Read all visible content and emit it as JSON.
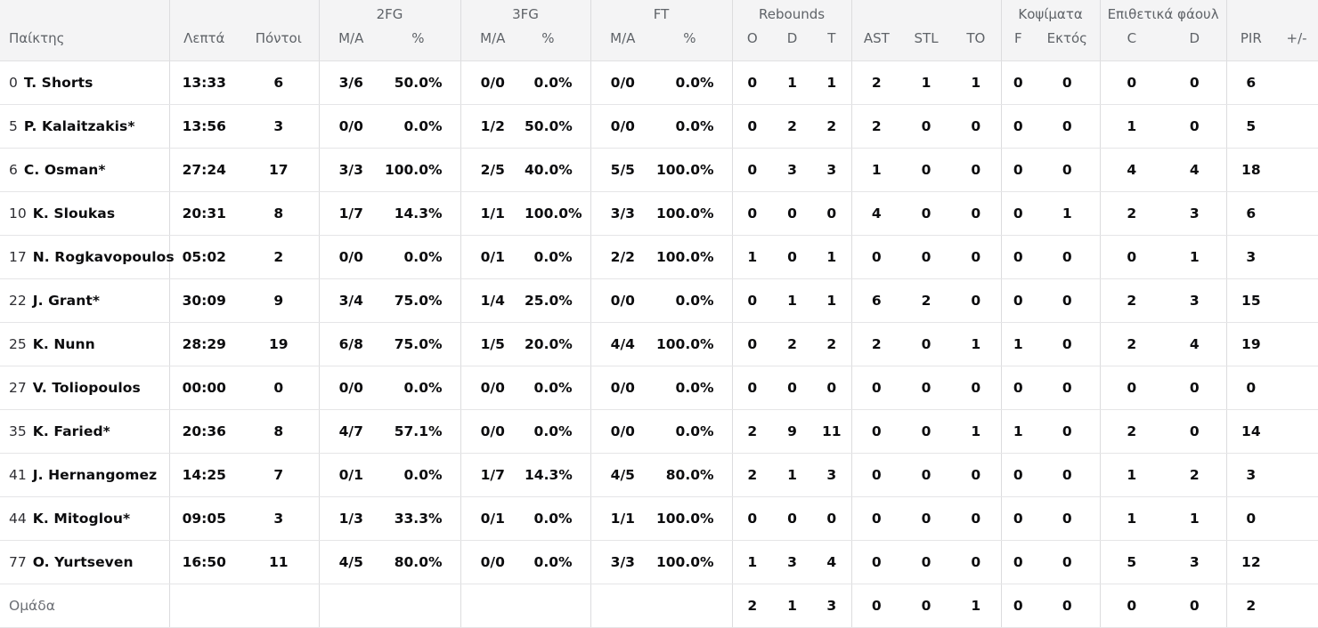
{
  "colors": {
    "header_bg": "#f4f4f5",
    "header_text": "#5f6368",
    "body_text": "#0c0c0e",
    "muted_text": "#6b6e74",
    "vertical_border": "#dcdcde",
    "row_border": "#e5e5e7"
  },
  "table": {
    "headers": {
      "player": "Παίκτης",
      "minutes": "Λεπτά",
      "points": "Πόντοι",
      "group_2fg": "2FG",
      "group_3fg": "3FG",
      "group_ft": "FT",
      "group_rebounds": "Rebounds",
      "group_blocks": "Κοψίματα",
      "group_off_fouls": "Επιθετικά φάουλ",
      "ma": "M/A",
      "pct": "%",
      "reb_o": "O",
      "reb_d": "D",
      "reb_t": "T",
      "ast": "AST",
      "stl": "STL",
      "to": "TO",
      "blk_f": "F",
      "blk_against": "Εκτός",
      "foul_c": "C",
      "foul_d": "D",
      "pir": "PIR",
      "plus_minus": "+/-"
    },
    "rows": [
      {
        "num": "0",
        "name": "T. Shorts",
        "min": "13:33",
        "pts": "6",
        "fg2ma": "3/6",
        "fg2pct": "50.0%",
        "fg3ma": "0/0",
        "fg3pct": "0.0%",
        "ftma": "0/0",
        "ftpct": "0.0%",
        "o": "0",
        "d": "1",
        "t": "1",
        "ast": "2",
        "stl": "1",
        "to": "1",
        "f": "0",
        "ektos": "0",
        "c": "0",
        "d2": "0",
        "pir": "6",
        "pm": ""
      },
      {
        "num": "5",
        "name": "P. Kalaitzakis*",
        "min": "13:56",
        "pts": "3",
        "fg2ma": "0/0",
        "fg2pct": "0.0%",
        "fg3ma": "1/2",
        "fg3pct": "50.0%",
        "ftma": "0/0",
        "ftpct": "0.0%",
        "o": "0",
        "d": "2",
        "t": "2",
        "ast": "2",
        "stl": "0",
        "to": "0",
        "f": "0",
        "ektos": "0",
        "c": "1",
        "d2": "0",
        "pir": "5",
        "pm": ""
      },
      {
        "num": "6",
        "name": "C. Osman*",
        "min": "27:24",
        "pts": "17",
        "fg2ma": "3/3",
        "fg2pct": "100.0%",
        "fg3ma": "2/5",
        "fg3pct": "40.0%",
        "ftma": "5/5",
        "ftpct": "100.0%",
        "o": "0",
        "d": "3",
        "t": "3",
        "ast": "1",
        "stl": "0",
        "to": "0",
        "f": "0",
        "ektos": "0",
        "c": "4",
        "d2": "4",
        "pir": "18",
        "pm": ""
      },
      {
        "num": "10",
        "name": "K. Sloukas",
        "min": "20:31",
        "pts": "8",
        "fg2ma": "1/7",
        "fg2pct": "14.3%",
        "fg3ma": "1/1",
        "fg3pct": "100.0%",
        "ftma": "3/3",
        "ftpct": "100.0%",
        "o": "0",
        "d": "0",
        "t": "0",
        "ast": "4",
        "stl": "0",
        "to": "0",
        "f": "0",
        "ektos": "1",
        "c": "2",
        "d2": "3",
        "pir": "6",
        "pm": ""
      },
      {
        "num": "17",
        "name": "N. Rogkavopoulos",
        "min": "05:02",
        "pts": "2",
        "fg2ma": "0/0",
        "fg2pct": "0.0%",
        "fg3ma": "0/1",
        "fg3pct": "0.0%",
        "ftma": "2/2",
        "ftpct": "100.0%",
        "o": "1",
        "d": "0",
        "t": "1",
        "ast": "0",
        "stl": "0",
        "to": "0",
        "f": "0",
        "ektos": "0",
        "c": "0",
        "d2": "1",
        "pir": "3",
        "pm": ""
      },
      {
        "num": "22",
        "name": "J. Grant*",
        "min": "30:09",
        "pts": "9",
        "fg2ma": "3/4",
        "fg2pct": "75.0%",
        "fg3ma": "1/4",
        "fg3pct": "25.0%",
        "ftma": "0/0",
        "ftpct": "0.0%",
        "o": "0",
        "d": "1",
        "t": "1",
        "ast": "6",
        "stl": "2",
        "to": "0",
        "f": "0",
        "ektos": "0",
        "c": "2",
        "d2": "3",
        "pir": "15",
        "pm": ""
      },
      {
        "num": "25",
        "name": "K. Nunn",
        "min": "28:29",
        "pts": "19",
        "fg2ma": "6/8",
        "fg2pct": "75.0%",
        "fg3ma": "1/5",
        "fg3pct": "20.0%",
        "ftma": "4/4",
        "ftpct": "100.0%",
        "o": "0",
        "d": "2",
        "t": "2",
        "ast": "2",
        "stl": "0",
        "to": "1",
        "f": "1",
        "ektos": "0",
        "c": "2",
        "d2": "4",
        "pir": "19",
        "pm": ""
      },
      {
        "num": "27",
        "name": "V. Toliopoulos",
        "min": "00:00",
        "pts": "0",
        "fg2ma": "0/0",
        "fg2pct": "0.0%",
        "fg3ma": "0/0",
        "fg3pct": "0.0%",
        "ftma": "0/0",
        "ftpct": "0.0%",
        "o": "0",
        "d": "0",
        "t": "0",
        "ast": "0",
        "stl": "0",
        "to": "0",
        "f": "0",
        "ektos": "0",
        "c": "0",
        "d2": "0",
        "pir": "0",
        "pm": ""
      },
      {
        "num": "35",
        "name": "K. Faried*",
        "min": "20:36",
        "pts": "8",
        "fg2ma": "4/7",
        "fg2pct": "57.1%",
        "fg3ma": "0/0",
        "fg3pct": "0.0%",
        "ftma": "0/0",
        "ftpct": "0.0%",
        "o": "2",
        "d": "9",
        "t": "11",
        "ast": "0",
        "stl": "0",
        "to": "1",
        "f": "1",
        "ektos": "0",
        "c": "2",
        "d2": "0",
        "pir": "14",
        "pm": ""
      },
      {
        "num": "41",
        "name": "J. Hernangomez",
        "min": "14:25",
        "pts": "7",
        "fg2ma": "0/1",
        "fg2pct": "0.0%",
        "fg3ma": "1/7",
        "fg3pct": "14.3%",
        "ftma": "4/5",
        "ftpct": "80.0%",
        "o": "2",
        "d": "1",
        "t": "3",
        "ast": "0",
        "stl": "0",
        "to": "0",
        "f": "0",
        "ektos": "0",
        "c": "1",
        "d2": "2",
        "pir": "3",
        "pm": ""
      },
      {
        "num": "44",
        "name": "K. Mitoglou*",
        "min": "09:05",
        "pts": "3",
        "fg2ma": "1/3",
        "fg2pct": "33.3%",
        "fg3ma": "0/1",
        "fg3pct": "0.0%",
        "ftma": "1/1",
        "ftpct": "100.0%",
        "o": "0",
        "d": "0",
        "t": "0",
        "ast": "0",
        "stl": "0",
        "to": "0",
        "f": "0",
        "ektos": "0",
        "c": "1",
        "d2": "1",
        "pir": "0",
        "pm": ""
      },
      {
        "num": "77",
        "name": "O. Yurtseven",
        "min": "16:50",
        "pts": "11",
        "fg2ma": "4/5",
        "fg2pct": "80.0%",
        "fg3ma": "0/0",
        "fg3pct": "0.0%",
        "ftma": "3/3",
        "ftpct": "100.0%",
        "o": "1",
        "d": "3",
        "t": "4",
        "ast": "0",
        "stl": "0",
        "to": "0",
        "f": "0",
        "ektos": "0",
        "c": "5",
        "d2": "3",
        "pir": "12",
        "pm": ""
      },
      {
        "team": true,
        "name": "Ομάδα",
        "min": "",
        "pts": "",
        "fg2ma": "",
        "fg2pct": "",
        "fg3ma": "",
        "fg3pct": "",
        "ftma": "",
        "ftpct": "",
        "o": "2",
        "d": "1",
        "t": "3",
        "ast": "0",
        "stl": "0",
        "to": "1",
        "f": "0",
        "ektos": "0",
        "c": "0",
        "d2": "0",
        "pir": "2",
        "pm": ""
      }
    ]
  }
}
